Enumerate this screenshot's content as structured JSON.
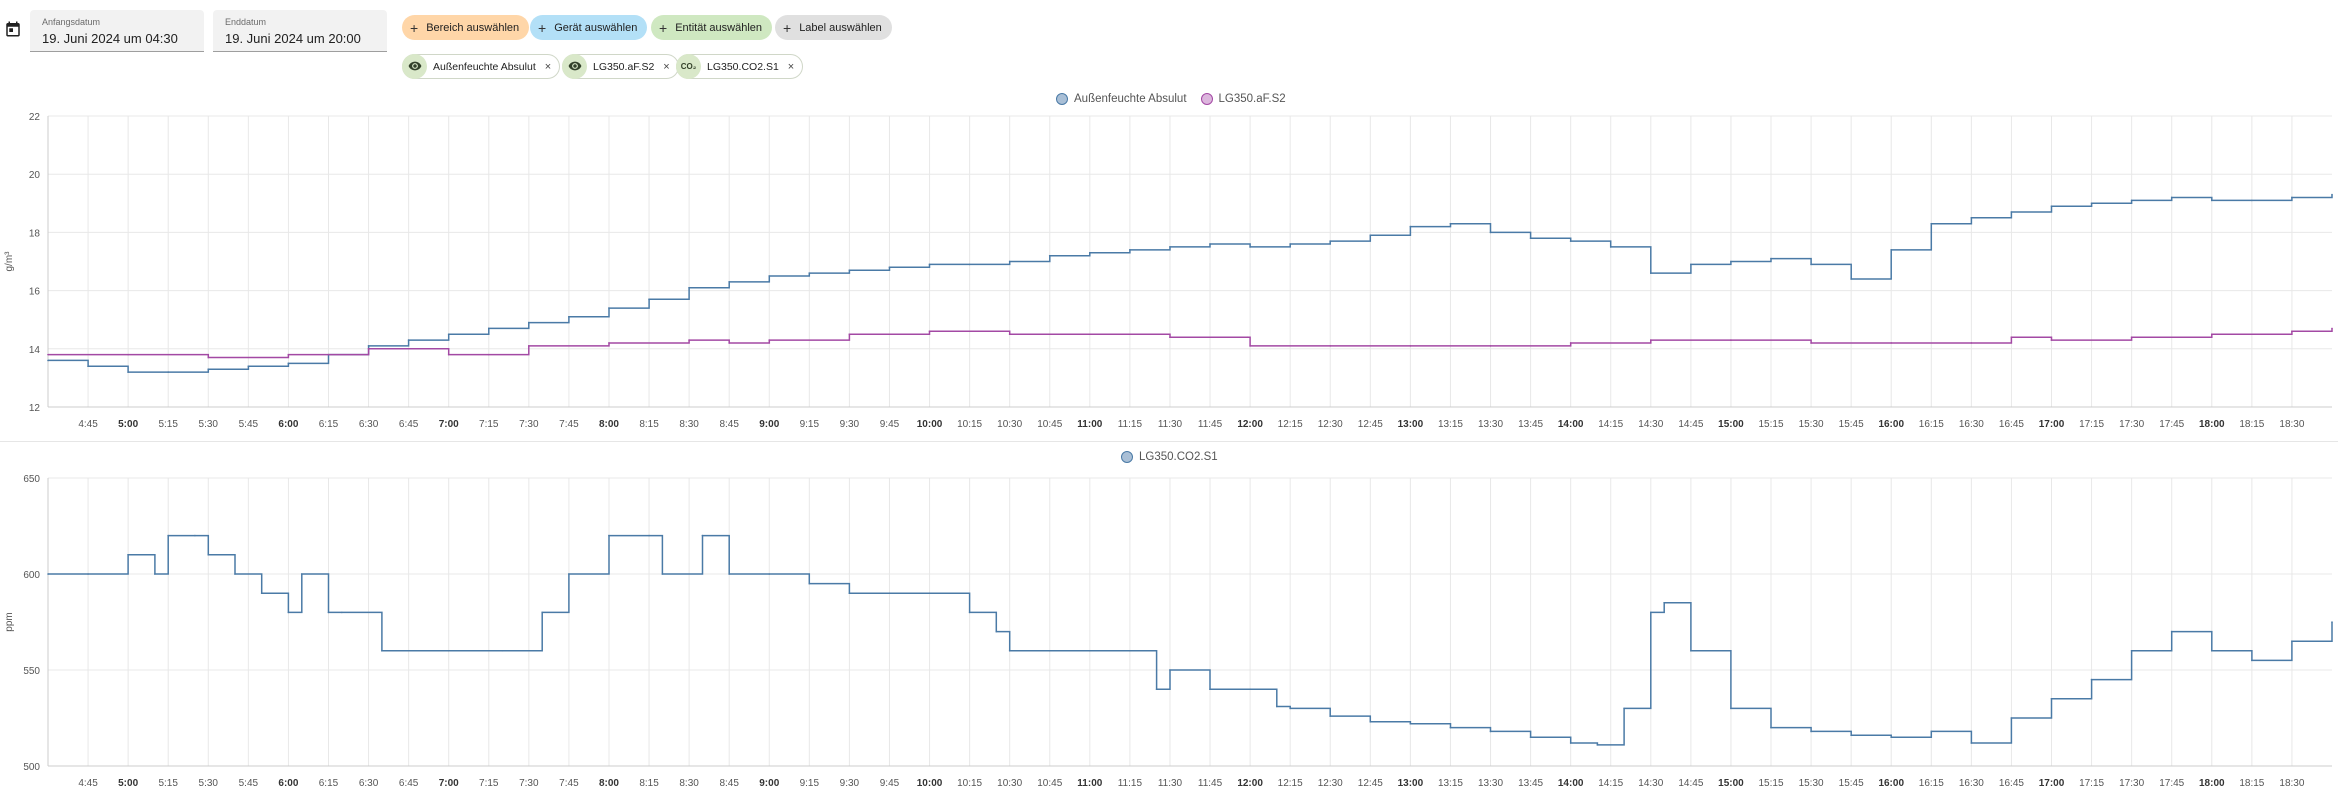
{
  "date_picker": {
    "start_label": "Anfangsdatum",
    "start_value": "19. Juni 2024 um 04:30",
    "end_label": "Enddatum",
    "end_value": "19. Juni 2024 um 20:00",
    "icon": "calendar-icon"
  },
  "target_buttons": [
    {
      "label": "Bereich auswählen",
      "color": "#ffd6a8",
      "icon": "plus-icon"
    },
    {
      "label": "Gerät auswählen",
      "color": "#b3e0f7",
      "icon": "plus-icon"
    },
    {
      "label": "Entität auswählen",
      "color": "#cfe8c1",
      "icon": "plus-icon"
    },
    {
      "label": "Label auswählen",
      "color": "#e0e0e0",
      "icon": "plus-icon"
    }
  ],
  "selected_entities": [
    {
      "label": "Außenfeuchte Absulut",
      "icon": "eye-icon",
      "remove": "×"
    },
    {
      "label": "LG350.aF.S2",
      "icon": "eye-icon",
      "remove": "×"
    },
    {
      "label": "LG350.CO2.S1",
      "icon_text": "CO₂",
      "icon": "co2-icon",
      "remove": "×"
    }
  ],
  "colors": {
    "series_blue": "#4a7aa6",
    "series_purple": "#a349a4",
    "grid": "#e8e8e8",
    "axis_text": "#555555"
  },
  "chart_data": [
    {
      "type": "line",
      "step": true,
      "ylabel": "g/m³",
      "ylim": [
        12,
        22
      ],
      "yticks": [
        12,
        14,
        16,
        18,
        20,
        22
      ],
      "xlim": [
        "04:30",
        "18:45"
      ],
      "xtick_labels": [
        "4:45",
        "5:00",
        "5:15",
        "5:30",
        "5:45",
        "6:00",
        "6:15",
        "6:30",
        "6:45",
        "7:00",
        "7:15",
        "7:30",
        "7:45",
        "8:00",
        "8:15",
        "8:30",
        "8:45",
        "9:00",
        "9:15",
        "9:30",
        "9:45",
        "10:00",
        "10:15",
        "10:30",
        "10:45",
        "11:00",
        "11:15",
        "11:30",
        "11:45",
        "12:00",
        "12:15",
        "12:30",
        "12:45",
        "13:00",
        "13:15",
        "13:30",
        "13:45",
        "14:00",
        "14:15",
        "14:30",
        "14:45",
        "15:00",
        "15:15",
        "15:30",
        "15:45",
        "16:00",
        "16:15",
        "16:30",
        "16:45",
        "17:00",
        "17:15",
        "17:30",
        "17:45",
        "18:00",
        "18:15",
        "18:30"
      ],
      "grid": true,
      "legend_position": "top-center",
      "series": [
        {
          "name": "Außenfeuchte Absulut",
          "color": "#4a7aa6",
          "x": [
            "04:30",
            "04:45",
            "05:00",
            "05:15",
            "05:30",
            "05:45",
            "06:00",
            "06:15",
            "06:30",
            "06:45",
            "07:00",
            "07:15",
            "07:30",
            "07:45",
            "08:00",
            "08:15",
            "08:30",
            "08:45",
            "09:00",
            "09:15",
            "09:30",
            "09:45",
            "10:00",
            "10:15",
            "10:30",
            "10:45",
            "11:00",
            "11:15",
            "11:30",
            "11:45",
            "12:00",
            "12:15",
            "12:30",
            "12:45",
            "13:00",
            "13:15",
            "13:30",
            "13:45",
            "14:00",
            "14:15",
            "14:30",
            "14:45",
            "15:00",
            "15:15",
            "15:30",
            "15:45",
            "16:00",
            "16:15",
            "16:30",
            "16:45",
            "17:00",
            "17:15",
            "17:30",
            "17:45",
            "18:00",
            "18:15",
            "18:30",
            "18:45"
          ],
          "values": [
            13.6,
            13.4,
            13.2,
            13.2,
            13.3,
            13.4,
            13.5,
            13.8,
            14.1,
            14.3,
            14.5,
            14.7,
            14.9,
            15.1,
            15.4,
            15.7,
            16.1,
            16.3,
            16.5,
            16.6,
            16.7,
            16.8,
            16.9,
            16.9,
            17.0,
            17.2,
            17.3,
            17.4,
            17.5,
            17.6,
            17.5,
            17.6,
            17.7,
            17.9,
            18.2,
            18.3,
            18.0,
            17.8,
            17.7,
            17.5,
            16.6,
            16.9,
            17.0,
            17.1,
            16.9,
            16.4,
            17.4,
            18.3,
            18.5,
            18.7,
            18.9,
            19.0,
            19.1,
            19.2,
            19.1,
            19.1,
            19.2,
            19.3
          ]
        },
        {
          "name": "LG350.aF.S2",
          "color": "#a349a4",
          "x": [
            "04:30",
            "05:00",
            "05:30",
            "06:00",
            "06:30",
            "07:00",
            "07:15",
            "07:30",
            "08:00",
            "08:30",
            "08:45",
            "09:00",
            "09:30",
            "10:00",
            "10:30",
            "11:00",
            "11:30",
            "11:59",
            "12:00",
            "12:30",
            "13:00",
            "13:30",
            "14:00",
            "14:30",
            "15:00",
            "15:30",
            "16:00",
            "16:30",
            "16:45",
            "17:00",
            "17:30",
            "18:00",
            "18:30",
            "18:45"
          ],
          "values": [
            13.8,
            13.8,
            13.7,
            13.8,
            14.0,
            13.8,
            13.8,
            14.1,
            14.2,
            14.3,
            14.2,
            14.3,
            14.5,
            14.6,
            14.5,
            14.5,
            14.4,
            14.4,
            14.1,
            14.1,
            14.1,
            14.1,
            14.2,
            14.3,
            14.3,
            14.2,
            14.2,
            14.2,
            14.4,
            14.3,
            14.4,
            14.5,
            14.6,
            14.7
          ]
        }
      ]
    },
    {
      "type": "line",
      "step": true,
      "ylabel": "ppm",
      "ylim": [
        500,
        650
      ],
      "yticks": [
        500,
        550,
        600,
        650
      ],
      "xlim": [
        "04:30",
        "18:45"
      ],
      "xtick_labels": [
        "4:45",
        "5:00",
        "5:15",
        "5:30",
        "5:45",
        "6:00",
        "6:15",
        "6:30",
        "6:45",
        "7:00",
        "7:15",
        "7:30",
        "7:45",
        "8:00",
        "8:15",
        "8:30",
        "8:45",
        "9:00",
        "9:15",
        "9:30",
        "9:45",
        "10:00",
        "10:15",
        "10:30",
        "10:45",
        "11:00",
        "11:15",
        "11:30",
        "11:45",
        "12:00",
        "12:15",
        "12:30",
        "12:45",
        "13:00",
        "13:15",
        "13:30",
        "13:45",
        "14:00",
        "14:15",
        "14:30",
        "14:45",
        "15:00",
        "15:15",
        "15:30",
        "15:45",
        "16:00",
        "16:15",
        "16:30",
        "16:45",
        "17:00",
        "17:15",
        "17:30",
        "17:45",
        "18:00",
        "18:15",
        "18:30"
      ],
      "grid": true,
      "legend_position": "top-center",
      "series": [
        {
          "name": "LG350.CO2.S1",
          "color": "#4a7aa6",
          "x": [
            "04:30",
            "04:45",
            "05:00",
            "05:10",
            "05:15",
            "05:25",
            "05:30",
            "05:40",
            "05:50",
            "06:00",
            "06:05",
            "06:15",
            "06:20",
            "06:35",
            "07:00",
            "07:20",
            "07:35",
            "07:45",
            "08:00",
            "08:15",
            "08:20",
            "08:35",
            "08:45",
            "09:00",
            "09:15",
            "09:30",
            "09:45",
            "10:00",
            "10:15",
            "10:25",
            "10:30",
            "10:45",
            "11:00",
            "11:15",
            "11:25",
            "11:30",
            "11:45",
            "12:00",
            "12:10",
            "12:15",
            "12:30",
            "12:45",
            "13:00",
            "13:15",
            "13:30",
            "13:45",
            "14:00",
            "14:10",
            "14:20",
            "14:30",
            "14:35",
            "14:45",
            "15:00",
            "15:15",
            "15:30",
            "15:45",
            "16:00",
            "16:15",
            "16:30",
            "16:45",
            "17:00",
            "17:15",
            "17:30",
            "17:45",
            "18:00",
            "18:15",
            "18:30",
            "18:45"
          ],
          "values": [
            600,
            600,
            610,
            600,
            620,
            620,
            610,
            600,
            590,
            580,
            600,
            580,
            580,
            560,
            560,
            560,
            580,
            600,
            620,
            620,
            600,
            620,
            600,
            600,
            595,
            590,
            590,
            590,
            580,
            570,
            560,
            560,
            560,
            560,
            540,
            550,
            540,
            540,
            531,
            530,
            526,
            523,
            522,
            520,
            518,
            515,
            512,
            511,
            530,
            580,
            585,
            560,
            530,
            520,
            518,
            516,
            515,
            518,
            512,
            525,
            535,
            545,
            560,
            570,
            560,
            555,
            565,
            575
          ]
        }
      ]
    },
    {
      "type": "legend",
      "series_names": [
        "Außenfeuchte Absulut",
        "LG350.aF.S2",
        "LG350.CO2.S1"
      ]
    }
  ]
}
